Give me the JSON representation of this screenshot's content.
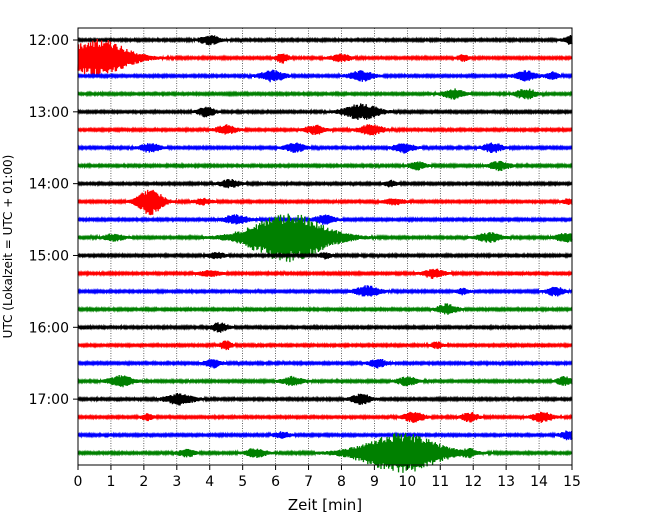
{
  "chart_data": {
    "type": "line",
    "subtype": "helicorder / seismogram",
    "xlabel": "Zeit  [min]",
    "ylabel": "UTC (Lokalzeit = UTC + 01:00)",
    "xlim": [
      0,
      15
    ],
    "x_ticks": [
      "0",
      "1",
      "2",
      "3",
      "4",
      "5",
      "6",
      "7",
      "8",
      "9",
      "10",
      "11",
      "12",
      "13",
      "14",
      "15"
    ],
    "y_tick_labels": [
      "12:00",
      "13:00",
      "14:00",
      "15:00",
      "16:00",
      "17:00"
    ],
    "grid": "vertical dotted lines at each minute",
    "trace_colors": [
      "#000000",
      "#ff0000",
      "#0000ff",
      "#008000"
    ],
    "traces": [
      {
        "start": "12:00",
        "color": "#000000",
        "events": [
          {
            "t": 4.0,
            "amp": 0.45,
            "dur": 0.5
          },
          {
            "t": 15.0,
            "amp": 0.45,
            "dur": 0.4
          }
        ]
      },
      {
        "start": "12:15",
        "color": "#ff0000",
        "events": [
          {
            "t": 0.6,
            "amp": 1.9,
            "dur": 1.6
          },
          {
            "t": 6.2,
            "amp": 0.5,
            "dur": 0.3
          },
          {
            "t": 8.0,
            "amp": 0.35,
            "dur": 0.5
          },
          {
            "t": 11.7,
            "amp": 0.3,
            "dur": 0.3
          }
        ]
      },
      {
        "start": "12:30",
        "color": "#0000ff",
        "events": [
          {
            "t": 5.9,
            "amp": 0.55,
            "dur": 0.6
          },
          {
            "t": 8.6,
            "amp": 0.5,
            "dur": 0.6
          },
          {
            "t": 13.6,
            "amp": 0.5,
            "dur": 0.5
          },
          {
            "t": 14.4,
            "amp": 0.35,
            "dur": 0.3
          }
        ]
      },
      {
        "start": "12:45",
        "color": "#008000",
        "events": [
          {
            "t": 11.4,
            "amp": 0.5,
            "dur": 0.5
          },
          {
            "t": 13.6,
            "amp": 0.5,
            "dur": 0.5
          }
        ]
      },
      {
        "start": "13:00",
        "color": "#000000",
        "events": [
          {
            "t": 3.9,
            "amp": 0.5,
            "dur": 0.4
          },
          {
            "t": 8.6,
            "amp": 0.75,
            "dur": 0.9
          }
        ]
      },
      {
        "start": "13:15",
        "color": "#ff0000",
        "events": [
          {
            "t": 4.5,
            "amp": 0.45,
            "dur": 0.5
          },
          {
            "t": 7.2,
            "amp": 0.45,
            "dur": 0.5
          },
          {
            "t": 8.9,
            "amp": 0.5,
            "dur": 0.6
          }
        ]
      },
      {
        "start": "13:30",
        "color": "#0000ff",
        "events": [
          {
            "t": 2.2,
            "amp": 0.45,
            "dur": 0.5
          },
          {
            "t": 6.6,
            "amp": 0.45,
            "dur": 0.5
          },
          {
            "t": 9.9,
            "amp": 0.5,
            "dur": 0.5
          },
          {
            "t": 12.6,
            "amp": 0.45,
            "dur": 0.5
          }
        ]
      },
      {
        "start": "13:45",
        "color": "#008000",
        "events": [
          {
            "t": 10.3,
            "amp": 0.4,
            "dur": 0.4
          },
          {
            "t": 12.8,
            "amp": 0.45,
            "dur": 0.5
          }
        ]
      },
      {
        "start": "14:00",
        "color": "#000000",
        "events": [
          {
            "t": 4.6,
            "amp": 0.4,
            "dur": 0.5
          },
          {
            "t": 9.5,
            "amp": 0.3,
            "dur": 0.3
          }
        ]
      },
      {
        "start": "14:15",
        "color": "#ff0000",
        "events": [
          {
            "t": 2.2,
            "amp": 1.3,
            "dur": 0.6
          },
          {
            "t": 3.8,
            "amp": 0.3,
            "dur": 0.4
          },
          {
            "t": 9.6,
            "amp": 0.3,
            "dur": 0.5
          },
          {
            "t": 14.9,
            "amp": 0.3,
            "dur": 0.3
          }
        ]
      },
      {
        "start": "14:30",
        "color": "#0000ff",
        "events": [
          {
            "t": 4.8,
            "amp": 0.45,
            "dur": 0.6
          },
          {
            "t": 7.5,
            "amp": 0.45,
            "dur": 0.5
          }
        ]
      },
      {
        "start": "14:45",
        "color": "#008000",
        "events": [
          {
            "t": 1.1,
            "amp": 0.35,
            "dur": 0.5
          },
          {
            "t": 6.4,
            "amp": 2.4,
            "dur": 2.0
          },
          {
            "t": 12.5,
            "amp": 0.45,
            "dur": 0.6
          },
          {
            "t": 14.8,
            "amp": 0.45,
            "dur": 0.5
          }
        ]
      },
      {
        "start": "15:00",
        "color": "#000000",
        "events": [
          {
            "t": 4.2,
            "amp": 0.3,
            "dur": 0.4
          },
          {
            "t": 7.5,
            "amp": 0.3,
            "dur": 0.3
          }
        ]
      },
      {
        "start": "15:15",
        "color": "#ff0000",
        "events": [
          {
            "t": 4.0,
            "amp": 0.3,
            "dur": 0.5
          },
          {
            "t": 10.8,
            "amp": 0.45,
            "dur": 0.5
          }
        ]
      },
      {
        "start": "15:30",
        "color": "#0000ff",
        "events": [
          {
            "t": 8.8,
            "amp": 0.55,
            "dur": 0.6
          },
          {
            "t": 11.7,
            "amp": 0.3,
            "dur": 0.3
          },
          {
            "t": 14.5,
            "amp": 0.45,
            "dur": 0.4
          }
        ]
      },
      {
        "start": "15:45",
        "color": "#008000",
        "events": [
          {
            "t": 11.2,
            "amp": 0.5,
            "dur": 0.5
          }
        ]
      },
      {
        "start": "16:00",
        "color": "#000000",
        "events": [
          {
            "t": 4.3,
            "amp": 0.45,
            "dur": 0.4
          }
        ]
      },
      {
        "start": "16:15",
        "color": "#ff0000",
        "events": [
          {
            "t": 4.5,
            "amp": 0.45,
            "dur": 0.3
          },
          {
            "t": 10.9,
            "amp": 0.3,
            "dur": 0.3
          }
        ]
      },
      {
        "start": "16:30",
        "color": "#0000ff",
        "events": [
          {
            "t": 4.1,
            "amp": 0.45,
            "dur": 0.4
          },
          {
            "t": 9.1,
            "amp": 0.45,
            "dur": 0.4
          }
        ]
      },
      {
        "start": "16:45",
        "color": "#008000",
        "events": [
          {
            "t": 1.3,
            "amp": 0.55,
            "dur": 0.6
          },
          {
            "t": 6.5,
            "amp": 0.45,
            "dur": 0.5
          },
          {
            "t": 10.0,
            "amp": 0.45,
            "dur": 0.5
          },
          {
            "t": 14.8,
            "amp": 0.45,
            "dur": 0.4
          }
        ]
      },
      {
        "start": "17:00",
        "color": "#000000",
        "events": [
          {
            "t": 3.1,
            "amp": 0.55,
            "dur": 0.7
          },
          {
            "t": 8.6,
            "amp": 0.5,
            "dur": 0.5
          }
        ]
      },
      {
        "start": "17:15",
        "color": "#ff0000",
        "events": [
          {
            "t": 2.1,
            "amp": 0.3,
            "dur": 0.3
          },
          {
            "t": 10.2,
            "amp": 0.5,
            "dur": 0.5
          },
          {
            "t": 11.9,
            "amp": 0.45,
            "dur": 0.4
          },
          {
            "t": 14.1,
            "amp": 0.5,
            "dur": 0.5
          }
        ]
      },
      {
        "start": "17:30",
        "color": "#0000ff",
        "events": [
          {
            "t": 6.2,
            "amp": 0.3,
            "dur": 0.4
          },
          {
            "t": 14.9,
            "amp": 0.45,
            "dur": 0.4
          }
        ]
      },
      {
        "start": "17:45",
        "color": "#008000",
        "events": [
          {
            "t": 3.3,
            "amp": 0.4,
            "dur": 0.4
          },
          {
            "t": 5.4,
            "amp": 0.45,
            "dur": 0.5
          },
          {
            "t": 9.8,
            "amp": 2.0,
            "dur": 2.0
          },
          {
            "t": 11.9,
            "amp": 0.3,
            "dur": 0.3
          }
        ]
      }
    ]
  }
}
